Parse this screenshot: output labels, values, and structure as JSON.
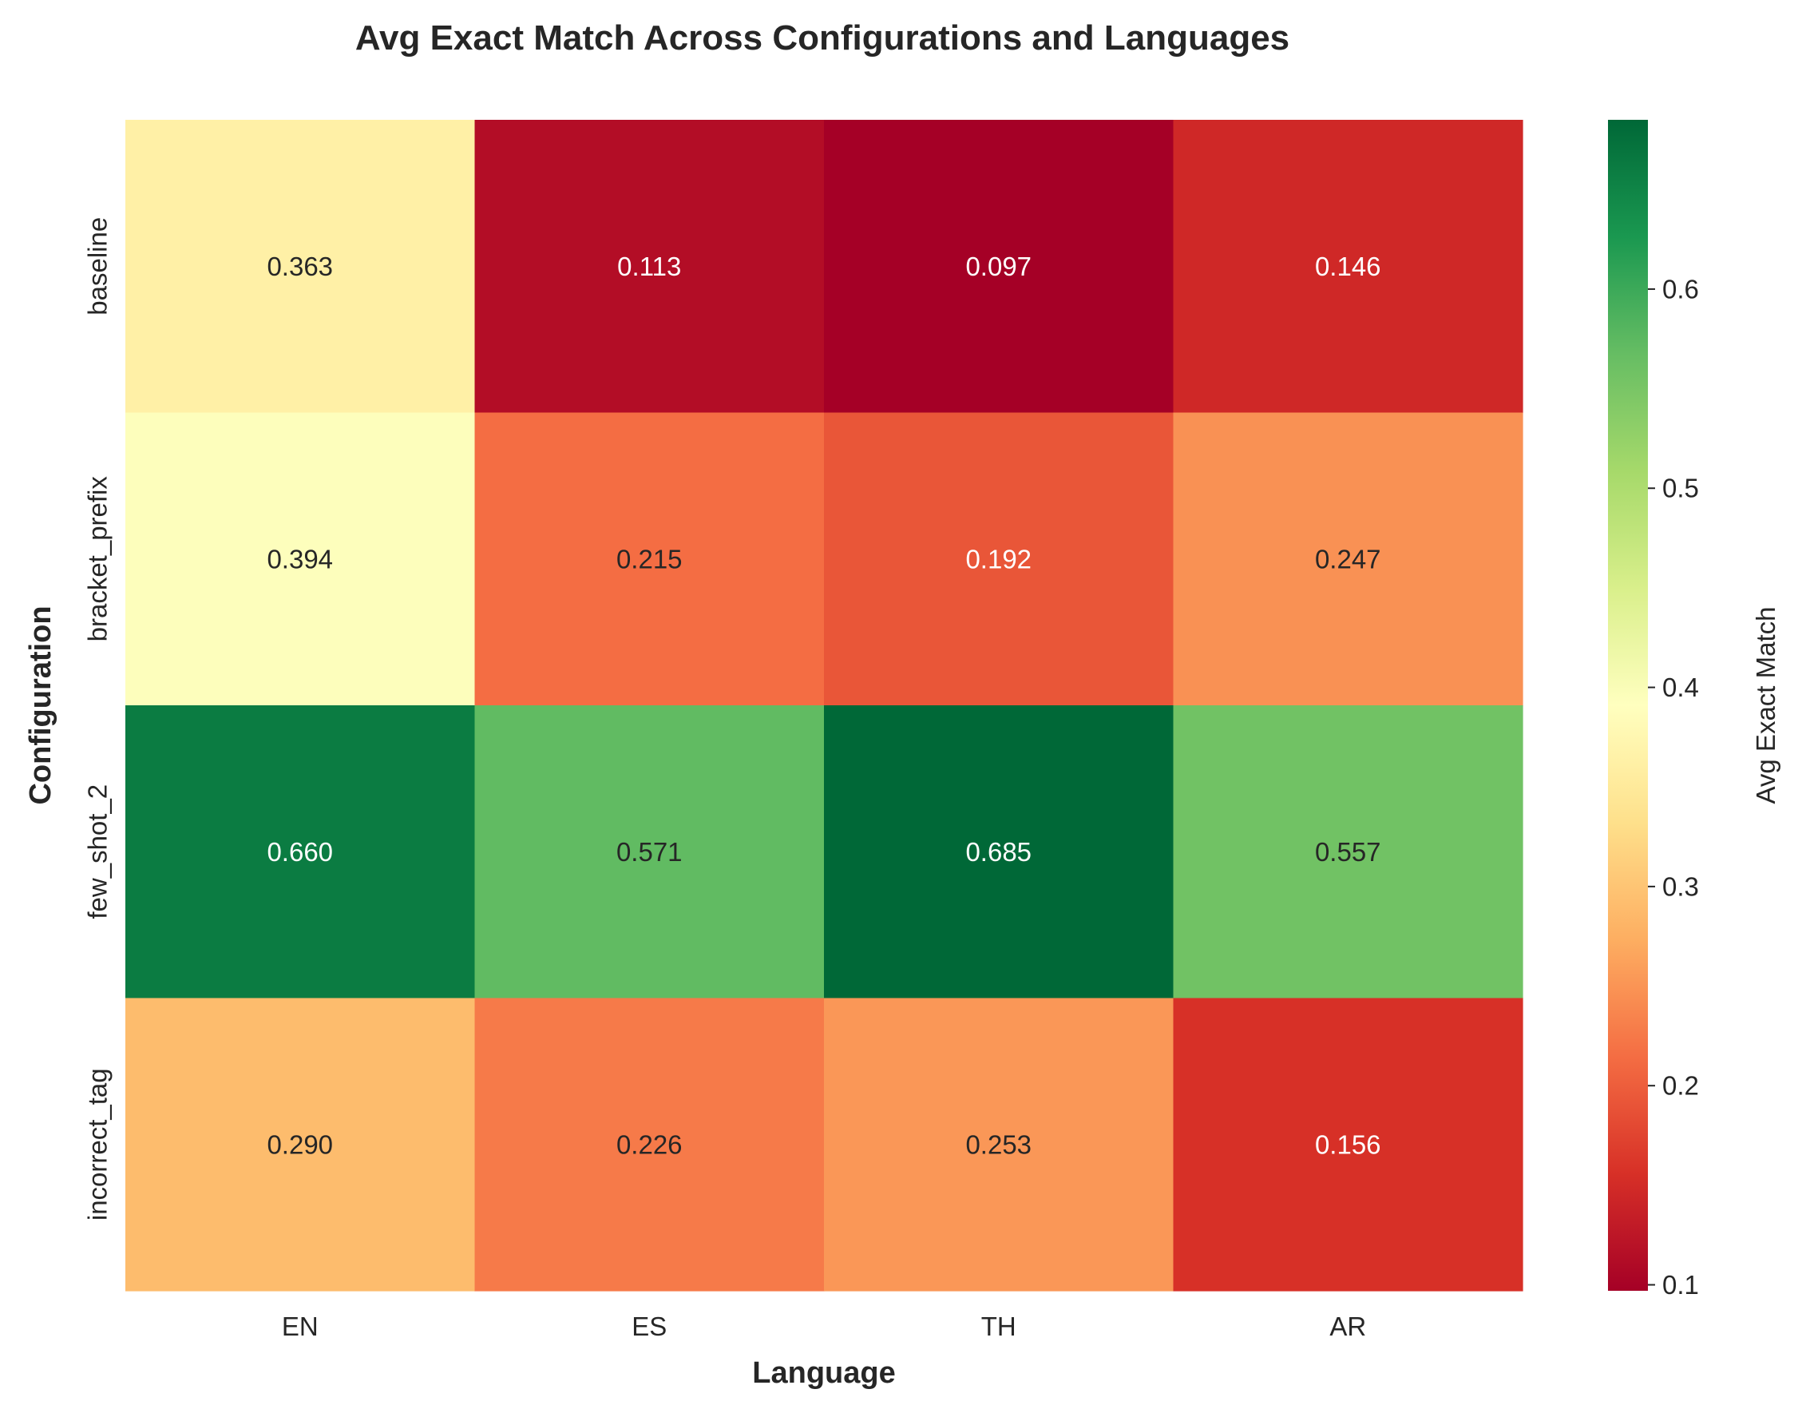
{
  "chart_data": {
    "type": "heatmap",
    "title": "Avg Exact Match Across Configurations and Languages",
    "xlabel": "Language",
    "ylabel": "Configuration",
    "x_categories": [
      "EN",
      "ES",
      "TH",
      "AR"
    ],
    "y_categories": [
      "baseline",
      "bracket_prefix",
      "few_shot_2",
      "incorrect_tag"
    ],
    "values": [
      [
        0.363,
        0.113,
        0.097,
        0.146
      ],
      [
        0.394,
        0.215,
        0.192,
        0.247
      ],
      [
        0.66,
        0.571,
        0.685,
        0.557
      ],
      [
        0.29,
        0.226,
        0.253,
        0.156
      ]
    ],
    "value_labels": [
      [
        "0.363",
        "0.113",
        "0.097",
        "0.146"
      ],
      [
        "0.394",
        "0.215",
        "0.192",
        "0.247"
      ],
      [
        "0.660",
        "0.571",
        "0.685",
        "0.557"
      ],
      [
        "0.290",
        "0.226",
        "0.253",
        "0.156"
      ]
    ],
    "colorbar": {
      "label": "Avg Exact Match",
      "colormap": "RdYlGn",
      "range": [
        0.097,
        0.685
      ],
      "ticks": [
        0.1,
        0.2,
        0.3,
        0.4,
        0.5,
        0.6
      ],
      "tick_labels": [
        "0.1",
        "0.2",
        "0.3",
        "0.4",
        "0.5",
        "0.6"
      ]
    },
    "grid": false
  }
}
